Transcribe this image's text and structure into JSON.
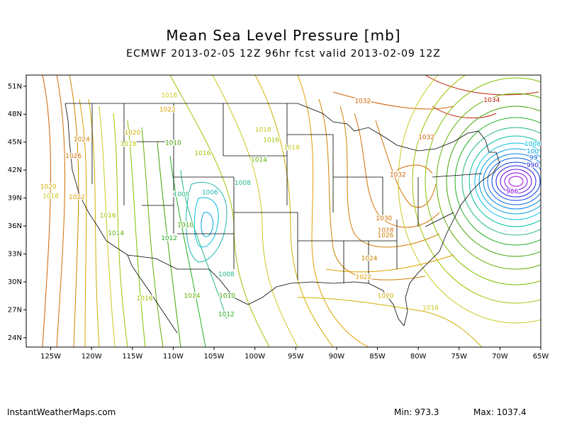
{
  "title": "Mean Sea Level Pressure [mb]",
  "subtitle": "ECMWF 2013-02-05 12Z 96hr fcst valid 2013-02-09 12Z",
  "credit": "InstantWeatherMaps.com",
  "stats": {
    "min_label": "Min:",
    "min_value": "973.3",
    "max_label": "Max:",
    "max_value": "1037.4"
  },
  "lat_labels": [
    "51N",
    "48N",
    "45N",
    "42N",
    "39N",
    "36N",
    "33N",
    "30N",
    "27N",
    "24N"
  ],
  "lon_labels": [
    "125W",
    "120W",
    "115W",
    "110W",
    "105W",
    "100W",
    "95W",
    "90W",
    "85W",
    "80W",
    "75W",
    "70W",
    "65W"
  ],
  "contour_labels": [
    {
      "text": "1018",
      "lon": -110.5,
      "lat": 49.8,
      "color": "#c8c820"
    },
    {
      "text": "1022",
      "lon": -110.7,
      "lat": 48.3,
      "color": "#e0a000"
    },
    {
      "text": "1024",
      "lon": -121.2,
      "lat": 45.1,
      "color": "#d08000"
    },
    {
      "text": "1026",
      "lon": -122.2,
      "lat": 43.3,
      "color": "#d07000"
    },
    {
      "text": "1020",
      "lon": -115.0,
      "lat": 45.8,
      "color": "#d0b000"
    },
    {
      "text": "1018",
      "lon": -115.5,
      "lat": 44.6,
      "color": "#b8c800"
    },
    {
      "text": "1010",
      "lon": -110.0,
      "lat": 44.7,
      "color": "#40a000"
    },
    {
      "text": "1016",
      "lon": -106.4,
      "lat": 43.6,
      "color": "#a0c000"
    },
    {
      "text": "1018",
      "lon": -99.0,
      "lat": 46.1,
      "color": "#c8c820"
    },
    {
      "text": "1016",
      "lon": -98.0,
      "lat": 45.0,
      "color": "#a0c000"
    },
    {
      "text": "1018",
      "lon": -95.5,
      "lat": 44.2,
      "color": "#c8c820"
    },
    {
      "text": "1014",
      "lon": -99.5,
      "lat": 42.9,
      "color": "#60b000"
    },
    {
      "text": "1008",
      "lon": -101.5,
      "lat": 40.4,
      "color": "#20b880"
    },
    {
      "text": "1006",
      "lon": -105.5,
      "lat": 39.4,
      "color": "#20b8b0"
    },
    {
      "text": "1008",
      "lon": -109.0,
      "lat": 39.2,
      "color": "#20b880"
    },
    {
      "text": "1020",
      "lon": -125.3,
      "lat": 40.0,
      "color": "#d0b000"
    },
    {
      "text": "1018",
      "lon": -125.0,
      "lat": 39.0,
      "color": "#c8c820"
    },
    {
      "text": "1022",
      "lon": -121.8,
      "lat": 38.9,
      "color": "#e0a000"
    },
    {
      "text": "1016",
      "lon": -118.0,
      "lat": 36.9,
      "color": "#a0c000"
    },
    {
      "text": "1014",
      "lon": -117.0,
      "lat": 35.0,
      "color": "#60b000"
    },
    {
      "text": "1012",
      "lon": -110.5,
      "lat": 34.5,
      "color": "#20b020"
    },
    {
      "text": "1010",
      "lon": -108.5,
      "lat": 35.9,
      "color": "#40a000"
    },
    {
      "text": "1008",
      "lon": -103.5,
      "lat": 30.6,
      "color": "#20b880"
    },
    {
      "text": "1010",
      "lon": -103.4,
      "lat": 28.3,
      "color": "#40a000"
    },
    {
      "text": "1014",
      "lon": -107.7,
      "lat": 28.3,
      "color": "#60b000"
    },
    {
      "text": "1012",
      "lon": -103.5,
      "lat": 26.3,
      "color": "#20b020"
    },
    {
      "text": "1016",
      "lon": -113.5,
      "lat": 28.0,
      "color": "#a0c000"
    },
    {
      "text": "1032",
      "lon": -86.8,
      "lat": 49.2,
      "color": "#d06000"
    },
    {
      "text": "1034",
      "lon": -71.0,
      "lat": 49.3,
      "color": "#c02000"
    },
    {
      "text": "1032",
      "lon": -79.0,
      "lat": 45.3,
      "color": "#d06000"
    },
    {
      "text": "1032",
      "lon": -82.5,
      "lat": 41.3,
      "color": "#d06000"
    },
    {
      "text": "1030",
      "lon": -84.2,
      "lat": 36.6,
      "color": "#d07000"
    },
    {
      "text": "1028",
      "lon": -84.0,
      "lat": 35.3,
      "color": "#d07000"
    },
    {
      "text": "1026",
      "lon": -84.0,
      "lat": 34.8,
      "color": "#d08000"
    },
    {
      "text": "1024",
      "lon": -86.0,
      "lat": 32.3,
      "color": "#d08000"
    },
    {
      "text": "1022",
      "lon": -86.7,
      "lat": 30.3,
      "color": "#e0a000"
    },
    {
      "text": "1020",
      "lon": -84.0,
      "lat": 28.3,
      "color": "#d0b000"
    },
    {
      "text": "1018",
      "lon": -78.5,
      "lat": 27.0,
      "color": "#c8c820"
    },
    {
      "text": "1008",
      "lon": -66.0,
      "lat": 44.6,
      "color": "#00c0e0"
    },
    {
      "text": "100",
      "lon": -66.0,
      "lat": 43.8,
      "color": "#00a0e0"
    },
    {
      "text": "99",
      "lon": -65.9,
      "lat": 43.1,
      "color": "#0060e0"
    },
    {
      "text": "990",
      "lon": -66.0,
      "lat": 42.3,
      "color": "#2020e0"
    },
    {
      "text": "986",
      "lon": -68.5,
      "lat": 39.5,
      "color": "#8000e0"
    }
  ]
}
